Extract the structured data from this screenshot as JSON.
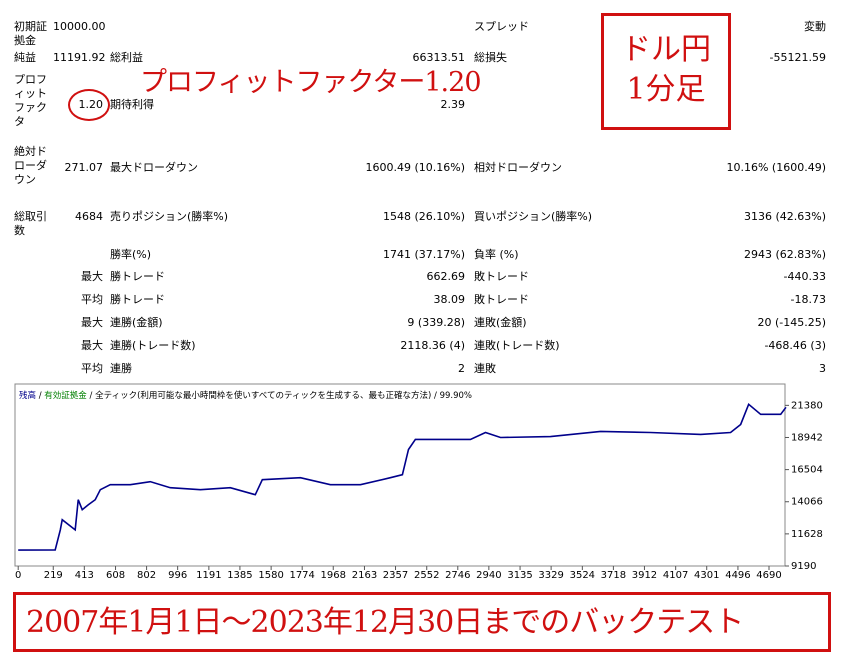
{
  "report": {
    "rows": [
      {
        "label": "初期証拠金",
        "value": "10000.00",
        "label3": "スプレッド",
        "value3": "変動"
      },
      {
        "label": "純益",
        "value": "11191.92",
        "label2": "総利益",
        "value2": "66313.51",
        "label3": "総損失",
        "value3": "-55121.59"
      },
      {
        "label": "プロフィットファクタ",
        "value": "1.20",
        "label2": "期待利得",
        "value2": "2.39"
      },
      {
        "label": "絶対ドローダウン",
        "value": "271.07",
        "label2": "最大ドローダウン",
        "value2": "1600.49 (10.16%)",
        "label3": "相対ドローダウン",
        "value3": "10.16% (1600.49)"
      },
      {
        "label": "総取引数",
        "value": "4684",
        "label2": "売りポジション(勝率%)",
        "value2": "1548 (26.10%)",
        "label3": "買いポジション(勝率%)",
        "value3": "3136 (42.63%)"
      },
      {
        "label2": "勝率(%)",
        "value2": "1741 (37.17%)",
        "label3": "負率 (%)",
        "value3": "2943 (62.83%)"
      },
      {
        "value": "最大",
        "label2": "勝トレード",
        "value2": "662.69",
        "label3": "敗トレード",
        "value3": "-440.33"
      },
      {
        "value": "平均",
        "label2": "勝トレード",
        "value2": "38.09",
        "label3": "敗トレード",
        "value3": "-18.73"
      },
      {
        "value": "最大",
        "label2": "連勝(金額)",
        "value2": "9 (339.28)",
        "label3": "連敗(金額)",
        "value3": "20 (-145.25)"
      },
      {
        "value": "最大",
        "label2": "連勝(トレード数)",
        "value2": "2118.36 (4)",
        "label3": "連敗(トレード数)",
        "value3": "-468.46 (3)"
      },
      {
        "value": "平均",
        "label2": "連勝",
        "value2": "2",
        "label3": "連敗",
        "value3": "3"
      }
    ]
  },
  "annotations": {
    "profit_factor_note": "プロフィットファクター1.20",
    "box_lines": [
      "ドル円",
      "1分足"
    ],
    "period": "2007年1月1日～2023年12月30日までのバックテスト"
  },
  "chart_data": {
    "type": "line",
    "separator": "/",
    "equity_name": "有効証拠金",
    "equity_color": "#008000",
    "model_note": "全ティック(利用可能な最小時間枠を使いすべてのティックを生成する、最も正確な方法)",
    "quality": "99.90%",
    "x": [
      0,
      231,
      263,
      275,
      356,
      375,
      400,
      438,
      481,
      513,
      575,
      700,
      825,
      950,
      1138,
      1325,
      1481,
      1525,
      1763,
      1950,
      2138,
      2325,
      2400,
      2438,
      2481,
      2575,
      2825,
      2919,
      3013,
      3325,
      3638,
      3950,
      4263,
      4450,
      4513,
      4563,
      4638,
      4763,
      4796
    ],
    "series": [
      {
        "name": "残高",
        "color": "#00008b",
        "values": [
          10400,
          10410,
          11930,
          12700,
          11930,
          14220,
          13460,
          13840,
          14220,
          14980,
          15360,
          15360,
          15590,
          15130,
          14980,
          15130,
          14600,
          15740,
          15890,
          15360,
          15360,
          15890,
          16120,
          18030,
          18790,
          18790,
          18790,
          19320,
          18940,
          19010,
          19400,
          19320,
          19170,
          19320,
          19930,
          21460,
          20700,
          20700,
          21230
        ]
      }
    ],
    "xlim": [
      -20,
      4790
    ],
    "ylim": [
      9190,
      23000
    ],
    "xticks": [
      0,
      219,
      413,
      608,
      802,
      996,
      1191,
      1385,
      1580,
      1774,
      1968,
      2163,
      2357,
      2552,
      2746,
      2940,
      3135,
      3329,
      3524,
      3718,
      3912,
      4107,
      4301,
      4496,
      4690
    ],
    "yticks": [
      9190,
      11628,
      14066,
      16504,
      18942,
      21380
    ]
  }
}
